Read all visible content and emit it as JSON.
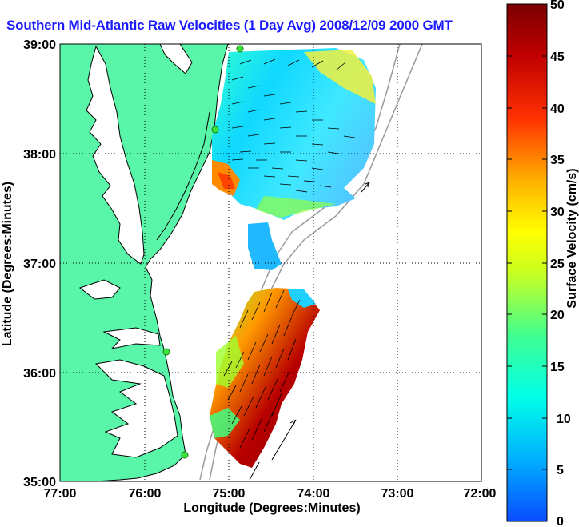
{
  "title": "Southern Mid-Atlantic Raw Velocities (1 Day Avg) 2008/12/09 2000 GMT",
  "xlabel": "Longitude (Degrees:Minutes)",
  "ylabel": "Latitude (Degrees:Minutes)",
  "xticks": [
    "77:00",
    "76:00",
    "75:00",
    "74:00",
    "73:00",
    "72:00"
  ],
  "yticks": [
    "39:00",
    "38:00",
    "37:00",
    "36:00",
    "35:00"
  ],
  "colorbar": {
    "label": "Surface Velocity (cm/s)",
    "ticks": [
      "50",
      "45",
      "40",
      "35",
      "30",
      "25",
      "20",
      "15",
      "10",
      "5",
      "0"
    ],
    "range": [
      0,
      50
    ],
    "colors": [
      "#0055ff",
      "#00ccff",
      "#00ffcc",
      "#66ff66",
      "#ffff00",
      "#ffaa00",
      "#ff3300",
      "#cc0000",
      "#800000"
    ]
  },
  "colors": {
    "land": "#59f5a8",
    "sea": "#ffffff",
    "station": "#39e639"
  },
  "map_extent": {
    "lon_min": -77,
    "lon_max": -72,
    "lat_min": 35,
    "lat_max": 39
  }
}
